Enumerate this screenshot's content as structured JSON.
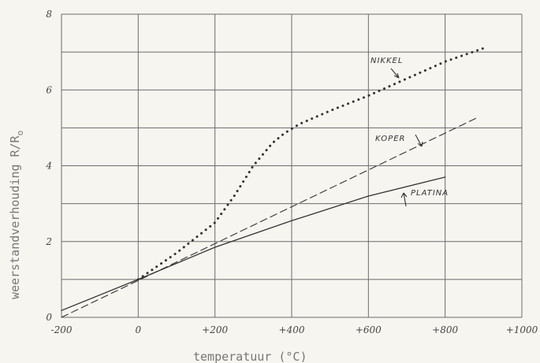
{
  "chart_data": {
    "type": "line",
    "title": "",
    "xlabel": "temperatuur (°C)",
    "ylabel": "weerstandverhouding R/R",
    "ylabel_subscript": "o",
    "xlim": [
      -200,
      1000
    ],
    "ylim": [
      0,
      8
    ],
    "xticks": [
      {
        "value": -200,
        "label": "-200"
      },
      {
        "value": 0,
        "label": "0"
      },
      {
        "value": 200,
        "label": "+200"
      },
      {
        "value": 400,
        "label": "+400"
      },
      {
        "value": 600,
        "label": "+600"
      },
      {
        "value": 800,
        "label": "+800"
      },
      {
        "value": 1000,
        "label": "+1000"
      }
    ],
    "yticks": [
      {
        "value": 0,
        "label": "0"
      },
      {
        "value": 2,
        "label": "2"
      },
      {
        "value": 4,
        "label": "4"
      },
      {
        "value": 6,
        "label": "6"
      },
      {
        "value": 8,
        "label": "8"
      }
    ],
    "grid": {
      "x_step": 200,
      "y_step": 1
    },
    "series": [
      {
        "name": "NIKKEL",
        "style": "dotted",
        "color": "#333333",
        "x": [
          0,
          100,
          200,
          250,
          300,
          350,
          380,
          420,
          500,
          600,
          700,
          800,
          900
        ],
        "y": [
          1.0,
          1.7,
          2.5,
          3.2,
          4.0,
          4.6,
          4.85,
          5.1,
          5.45,
          5.85,
          6.3,
          6.75,
          7.1
        ]
      },
      {
        "name": "KOPER",
        "style": "dashed",
        "color": "#333333",
        "x": [
          -200,
          880
        ],
        "y": [
          0.0,
          5.25
        ]
      },
      {
        "name": "PLATINA",
        "style": "solid",
        "color": "#333333",
        "x": [
          -200,
          0,
          200,
          400,
          600,
          800
        ],
        "y": [
          0.18,
          1.0,
          1.85,
          2.55,
          3.2,
          3.7
        ]
      }
    ],
    "annotations": [
      {
        "text": "NIKKEL",
        "series": "NIKKEL"
      },
      {
        "text": "KOPER",
        "series": "KOPER"
      },
      {
        "text": "PLATINA",
        "series": "PLATINA"
      }
    ]
  }
}
